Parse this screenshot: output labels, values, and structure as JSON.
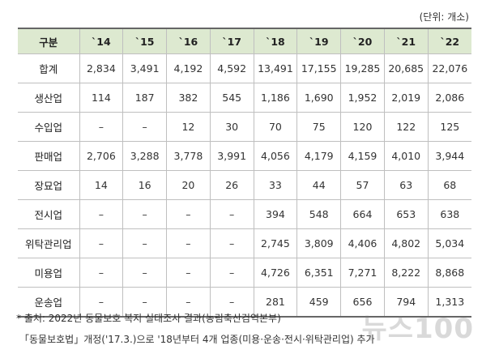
{
  "unit_label": "(단위: 개소)",
  "table": {
    "header": [
      "구분",
      "`14",
      "`15",
      "`16",
      "`17",
      "`18",
      "`19",
      "`20",
      "`21",
      "`22"
    ],
    "rows": [
      {
        "label": "합계",
        "values": [
          "2,834",
          "3,491",
          "4,192",
          "4,592",
          "13,491",
          "17,155",
          "19,285",
          "20,685",
          "22,076"
        ]
      },
      {
        "label": "생산업",
        "values": [
          "114",
          "187",
          "382",
          "545",
          "1,186",
          "1,690",
          "1,952",
          "2,019",
          "2,086"
        ]
      },
      {
        "label": "수입업",
        "values": [
          "–",
          "–",
          "12",
          "30",
          "70",
          "75",
          "120",
          "122",
          "125"
        ]
      },
      {
        "label": "판매업",
        "values": [
          "2,706",
          "3,288",
          "3,778",
          "3,991",
          "4,056",
          "4,179",
          "4,159",
          "4,010",
          "3,944"
        ]
      },
      {
        "label": "장묘업",
        "values": [
          "14",
          "16",
          "20",
          "26",
          "33",
          "44",
          "57",
          "63",
          "68"
        ]
      },
      {
        "label": "전시업",
        "values": [
          "–",
          "–",
          "–",
          "–",
          "394",
          "548",
          "664",
          "653",
          "638"
        ]
      },
      {
        "label": "위탁관리업",
        "values": [
          "–",
          "–",
          "–",
          "–",
          "2,745",
          "3,809",
          "4,406",
          "4,802",
          "5,034"
        ]
      },
      {
        "label": "미용업",
        "values": [
          "–",
          "–",
          "–",
          "–",
          "4,726",
          "6,351",
          "7,271",
          "8,222",
          "8,868"
        ]
      },
      {
        "label": "운송업",
        "values": [
          "–",
          "–",
          "–",
          "–",
          "281",
          "459",
          "656",
          "794",
          "1,313"
        ]
      }
    ]
  },
  "notes": {
    "source": "* 출처: 2022년 동물보호 복지 실태조사 결과(농림축산검역본부)",
    "revision": "「동물보호법」개정('17.3.)으로 '18년부터 4개 업종(미용·운송·전시·위탁관리업) 추가"
  },
  "watermark_text": "뉴스100"
}
